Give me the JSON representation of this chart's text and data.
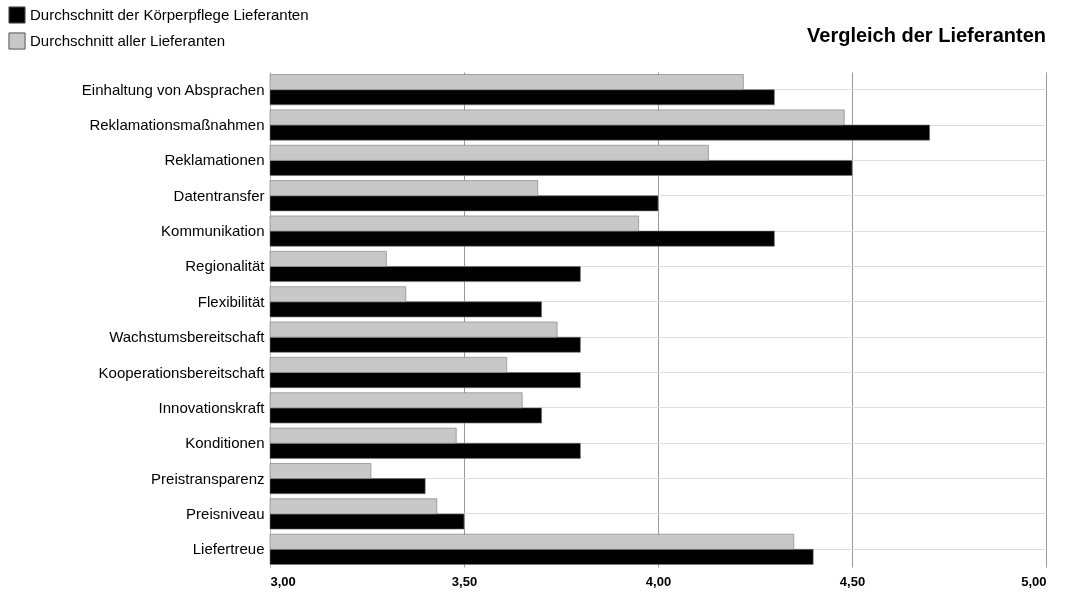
{
  "chart_data": {
    "type": "bar",
    "orientation": "horizontal",
    "title": "Vergleich der Lieferanten",
    "categories": [
      "Einhaltung von Absprachen",
      "Reklamationsmaßnahmen",
      "Reklamationen",
      "Datentransfer",
      "Kommunikation",
      "Regionalität",
      "Flexibilität",
      "Wachstumsbereitschaft",
      "Kooperationsbereitschaft",
      "Innovationskraft",
      "Konditionen",
      "Preistransparenz",
      "Preisniveau",
      "Liefertreue"
    ],
    "series": [
      {
        "name": "Durchschnitt der Körperpflege Lieferanten",
        "color": "#000000",
        "values": [
          4.3,
          4.7,
          4.5,
          4.0,
          4.3,
          3.8,
          3.7,
          3.8,
          3.8,
          3.7,
          3.8,
          3.4,
          3.5,
          4.4
        ]
      },
      {
        "name": "Durchschnitt aller Lieferanten",
        "color": "#c8c8c8",
        "values": [
          4.22,
          4.48,
          4.13,
          3.69,
          3.95,
          3.3,
          3.35,
          3.74,
          3.61,
          3.65,
          3.48,
          3.26,
          3.43,
          4.35
        ]
      }
    ],
    "xlim": [
      3,
      5
    ],
    "xticks": [
      {
        "value": 3,
        "label": "3,00"
      },
      {
        "value": 3.5,
        "label": "3,50"
      },
      {
        "value": 4,
        "label": "4,00"
      },
      {
        "value": 4.5,
        "label": "4,50"
      },
      {
        "value": 5,
        "label": "5,00"
      }
    ],
    "grid": true,
    "legend": "top left"
  }
}
